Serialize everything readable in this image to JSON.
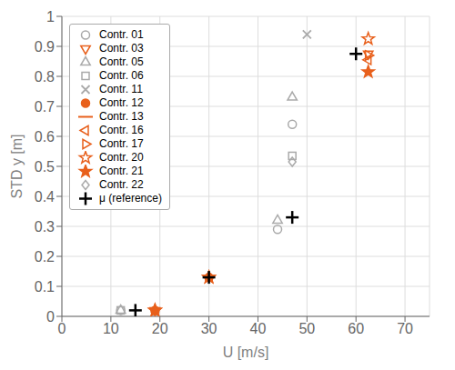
{
  "chart_data": {
    "type": "scatter",
    "xlabel": "U [m/s]",
    "ylabel": "STD y [m]",
    "xlim": [
      0,
      75
    ],
    "ylim": [
      0,
      1.0
    ],
    "xticks": [
      0,
      10,
      20,
      30,
      40,
      50,
      60,
      70
    ],
    "yticks": [
      0,
      0.1,
      0.2,
      0.3,
      0.4,
      0.5,
      0.6,
      0.7,
      0.8,
      0.9,
      1.0
    ],
    "grid": true,
    "legend": "upper left",
    "series": [
      {
        "name": "Contr. 01",
        "color": "#aaaaaa",
        "marker": "circle-open",
        "x": [
          12,
          44,
          47
        ],
        "y": [
          0.02,
          0.29,
          0.64
        ]
      },
      {
        "name": "Contr. 03",
        "color": "#E8601C",
        "marker": "triangle_down-open",
        "x": [
          19,
          62.5
        ],
        "y": [
          0.02,
          0.875
        ]
      },
      {
        "name": "Contr. 05",
        "color": "#aaaaaa",
        "marker": "triangle_up-open",
        "x": [
          12,
          44,
          47
        ],
        "y": [
          0.02,
          0.32,
          0.73
        ]
      },
      {
        "name": "Contr. 06",
        "color": "#aaaaaa",
        "marker": "square-open",
        "x": [
          12,
          47
        ],
        "y": [
          0.02,
          0.535
        ]
      },
      {
        "name": "Contr. 11",
        "color": "#aaaaaa",
        "marker": "x",
        "x": [
          50
        ],
        "y": [
          0.94
        ]
      },
      {
        "name": "Contr. 12",
        "color": "#E8601C",
        "marker": "circle-filled",
        "x": [
          19,
          30
        ],
        "y": [
          0.02,
          0.13
        ]
      },
      {
        "name": "Contr. 13",
        "color": "#E8601C",
        "line_style": "solid",
        "x": [],
        "y": []
      },
      {
        "name": "Contr. 16",
        "color": "#E8601C",
        "marker": "triangle_left-open",
        "x": [
          62.5
        ],
        "y": [
          0.855
        ]
      },
      {
        "name": "Contr. 17",
        "color": "#E8601C",
        "marker": "triangle_right-open",
        "x": [
          62.5
        ],
        "y": [
          0.87
        ]
      },
      {
        "name": "Contr. 20",
        "color": "#E8601C",
        "marker": "star-open",
        "x": [
          19,
          30,
          62.5
        ],
        "y": [
          0.02,
          0.13,
          0.925
        ]
      },
      {
        "name": "Contr. 21",
        "color": "#E8601C",
        "marker": "star-filled",
        "x": [
          19,
          30,
          62.5
        ],
        "y": [
          0.02,
          0.13,
          0.815
        ]
      },
      {
        "name": "Contr. 22",
        "color": "#aaaaaa",
        "marker": "diamond-open",
        "x": [
          47
        ],
        "y": [
          0.515
        ]
      },
      {
        "name": "μ (reference)",
        "color": "#000000",
        "marker": "plus",
        "x": [
          15,
          30,
          47,
          60
        ],
        "y": [
          0.02,
          0.13,
          0.33,
          0.875
        ]
      }
    ]
  }
}
